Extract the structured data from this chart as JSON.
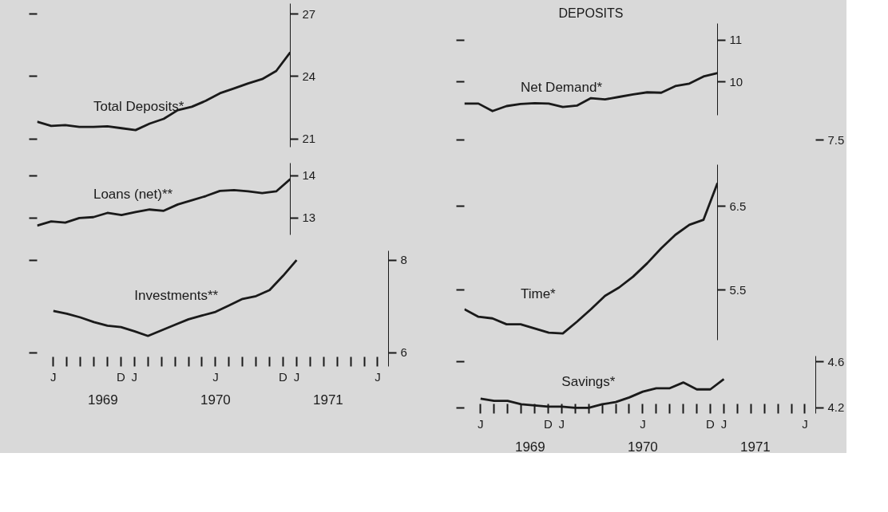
{
  "chart_data": [
    {
      "type": "line",
      "categories": [
        null,
        null,
        null,
        null,
        null,
        null,
        null,
        null,
        null,
        null,
        null,
        null,
        null,
        null,
        null,
        null,
        null,
        null,
        null
      ],
      "series": [
        {
          "name": "Total Deposits*",
          "color": "#1a1a1a",
          "values": [
            21.82,
            21.62,
            21.66,
            21.57,
            21.57,
            21.6,
            21.51,
            21.42,
            21.73,
            21.96,
            22.38,
            22.54,
            22.83,
            23.19,
            23.42,
            23.66,
            23.87,
            24.26,
            25.16
          ]
        }
      ],
      "ylim": [
        20.6,
        27.5
      ],
      "yticks": [
        21,
        24,
        27
      ]
    },
    {
      "type": "line",
      "categories": [
        null,
        null,
        null,
        null,
        null,
        null,
        null,
        null,
        null,
        null,
        null,
        null,
        null,
        null,
        null,
        null,
        null,
        null,
        null
      ],
      "series": [
        {
          "name": "Loans (net)**",
          "color": "#1a1a1a",
          "values": [
            12.82,
            12.92,
            12.89,
            13.0,
            13.02,
            13.12,
            13.07,
            13.14,
            13.2,
            13.17,
            13.32,
            13.42,
            13.52,
            13.64,
            13.66,
            13.63,
            13.59,
            13.63,
            13.92
          ]
        }
      ],
      "ylim": [
        12.6,
        14.3
      ],
      "yticks": [
        13,
        14
      ]
    },
    {
      "type": "line",
      "categories": [
        "J",
        null,
        null,
        null,
        null,
        "D",
        "J",
        null,
        null,
        null,
        null,
        null,
        "J",
        null,
        null,
        null,
        null,
        "D",
        "J",
        null,
        null,
        null,
        null,
        null,
        "J"
      ],
      "series": [
        {
          "name": "Investments**",
          "color": "#1a1a1a",
          "values": [
            6.9,
            6.84,
            6.76,
            6.66,
            6.58,
            6.55,
            6.46,
            6.36,
            6.48,
            6.6,
            6.72,
            6.8,
            6.88,
            7.02,
            7.16,
            7.22,
            7.35,
            7.66,
            8.0,
            null,
            null,
            null,
            null,
            null,
            null
          ]
        }
      ],
      "ylim": [
        5.7,
        8.2
      ],
      "yticks": [
        6,
        8
      ],
      "annotations": [
        "1969",
        "1970",
        "1971"
      ]
    },
    {
      "type": "line",
      "title": "DEPOSITS",
      "categories": [
        null,
        null,
        null,
        null,
        null,
        null,
        null,
        null,
        null,
        null,
        null,
        null,
        null,
        null,
        null,
        null,
        null,
        null,
        null
      ],
      "series": [
        {
          "name": "Net Demand*",
          "color": "#1a1a1a",
          "values": [
            9.48,
            9.48,
            9.3,
            9.42,
            9.47,
            9.49,
            9.48,
            9.4,
            9.43,
            9.61,
            9.58,
            9.64,
            9.7,
            9.75,
            9.74,
            9.9,
            9.96,
            10.13,
            10.21
          ]
        }
      ],
      "ylim": [
        9.2,
        11.4
      ],
      "yticks": [
        10,
        11
      ]
    },
    {
      "type": "other",
      "annotations": [
        "7.5"
      ]
    },
    {
      "type": "line",
      "categories": [
        null,
        null,
        null,
        null,
        null,
        null,
        null,
        null,
        null,
        null,
        null,
        null,
        null,
        null,
        null,
        null,
        null,
        null,
        null
      ],
      "series": [
        {
          "name": "Time*",
          "color": "#1a1a1a",
          "values": [
            5.27,
            5.18,
            5.16,
            5.09,
            5.09,
            5.04,
            4.99,
            4.98,
            5.12,
            5.27,
            5.43,
            5.53,
            5.66,
            5.82,
            6.0,
            6.16,
            6.28,
            6.34,
            6.78
          ]
        }
      ],
      "ylim": [
        4.9,
        7.0
      ],
      "yticks": [
        5.5,
        6.5
      ]
    },
    {
      "type": "line",
      "categories": [
        "J",
        null,
        null,
        null,
        null,
        "D",
        "J",
        null,
        null,
        null,
        null,
        null,
        "J",
        null,
        null,
        null,
        null,
        "D",
        "J",
        null,
        null,
        null,
        null,
        null,
        "J"
      ],
      "series": [
        {
          "name": "Savings*",
          "color": "#1a1a1a",
          "values": [
            4.28,
            4.26,
            4.26,
            4.23,
            4.22,
            4.21,
            4.21,
            4.2,
            4.2,
            4.23,
            4.25,
            4.29,
            4.34,
            4.37,
            4.37,
            4.42,
            4.36,
            4.36,
            4.45,
            null,
            null,
            null,
            null,
            null,
            null
          ]
        }
      ],
      "ylim": [
        4.15,
        4.65
      ],
      "yticks": [
        4.2,
        4.6
      ],
      "annotations": [
        "1969",
        "1970",
        "1971"
      ]
    }
  ]
}
